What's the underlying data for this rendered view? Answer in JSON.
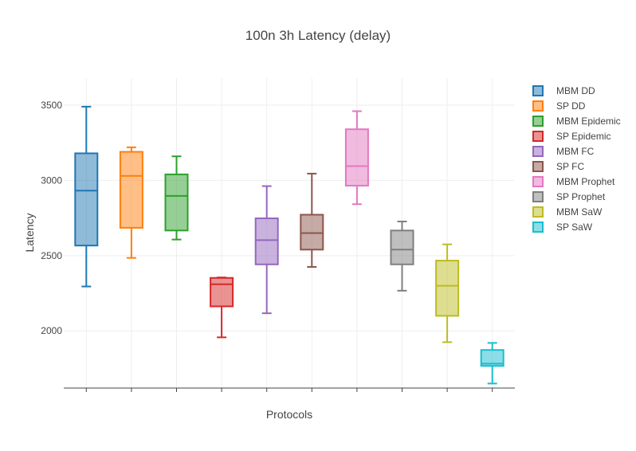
{
  "chart_data": {
    "type": "box",
    "title": "100n 3h Latency (delay)",
    "xlabel": "Protocols",
    "ylabel": "Latency",
    "ylim": [
      1620,
      3680
    ],
    "yticks": [
      2000,
      2500,
      3000,
      3500
    ],
    "grid": true,
    "legend_position": "right",
    "series": [
      {
        "name": "MBM DD",
        "color": "#1f77b4",
        "min": 2295,
        "q1": 2567,
        "median": 2932,
        "q3": 3180,
        "max": 3490
      },
      {
        "name": "SP DD",
        "color": "#ff7f0e",
        "min": 2485,
        "q1": 2685,
        "median": 3030,
        "q3": 3190,
        "max": 3220
      },
      {
        "name": "MBM Epidemic",
        "color": "#2ca02c",
        "min": 2607,
        "q1": 2667,
        "median": 2897,
        "q3": 3040,
        "max": 3160
      },
      {
        "name": "SP Epidemic",
        "color": "#d62728",
        "min": 1957,
        "q1": 2163,
        "median": 2310,
        "q3": 2352,
        "max": 2355
      },
      {
        "name": "MBM FC",
        "color": "#9467bd",
        "min": 2117,
        "q1": 2442,
        "median": 2603,
        "q3": 2748,
        "max": 2962
      },
      {
        "name": "SP FC",
        "color": "#8c564b",
        "min": 2425,
        "q1": 2540,
        "median": 2650,
        "q3": 2772,
        "max": 3045
      },
      {
        "name": "MBM Prophet",
        "color": "#e377c2",
        "min": 2842,
        "q1": 2965,
        "median": 3095,
        "q3": 3340,
        "max": 3460
      },
      {
        "name": "SP Prophet",
        "color": "#7f7f7f",
        "min": 2267,
        "q1": 2442,
        "median": 2540,
        "q3": 2667,
        "max": 2727
      },
      {
        "name": "MBM SaW",
        "color": "#bcbd22",
        "min": 1925,
        "q1": 2100,
        "median": 2300,
        "q3": 2467,
        "max": 2575
      },
      {
        "name": "SP SaW",
        "color": "#17becf",
        "min": 1650,
        "q1": 1767,
        "median": 1782,
        "q3": 1873,
        "max": 1920
      }
    ]
  }
}
